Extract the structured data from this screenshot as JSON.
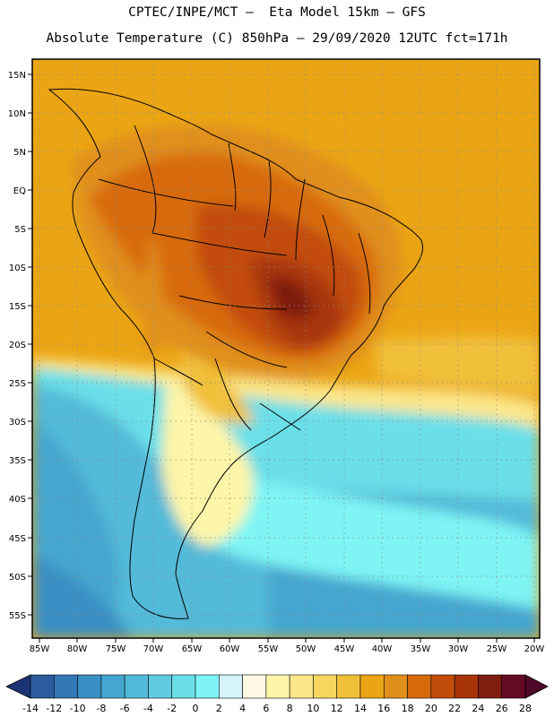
{
  "header": {
    "line1": "CPTEC/INPE/MCT –  Eta Model 15km – GFS",
    "line2": "Absolute Temperature (C) 850hPa – 29/09/2020 12UTC fct=171h"
  },
  "lat_labels": [
    "15N",
    "10N",
    "5N",
    "EQ",
    "5S",
    "10S",
    "15S",
    "20S",
    "25S",
    "30S",
    "35S",
    "40S",
    "45S",
    "50S",
    "55S"
  ],
  "lon_labels": [
    "85W",
    "80W",
    "75W",
    "70W",
    "65W",
    "60W",
    "55W",
    "50W",
    "45W",
    "40W",
    "35W",
    "30W",
    "25W",
    "20W"
  ],
  "colorbar": {
    "labels": [
      "-14",
      "-12",
      "-10",
      "-8",
      "-6",
      "-4",
      "-2",
      "0",
      "2",
      "4",
      "6",
      "8",
      "10",
      "12",
      "14",
      "16",
      "18",
      "20",
      "22",
      "24",
      "26",
      "28"
    ],
    "colors": [
      "#1f3f8a",
      "#2a5c9e",
      "#3278b4",
      "#3a8fc4",
      "#45a6cf",
      "#52bad8",
      "#5fcbe0",
      "#6adfe8",
      "#7ef4f4",
      "#d2f4fa",
      "#fdf9e4",
      "#fdf5a8",
      "#fbe68a",
      "#f7d660",
      "#f1c03a",
      "#eba514",
      "#e08f1c",
      "#d86a0c",
      "#c24c0a",
      "#a73408",
      "#7e1e10",
      "#650a24"
    ]
  }
}
